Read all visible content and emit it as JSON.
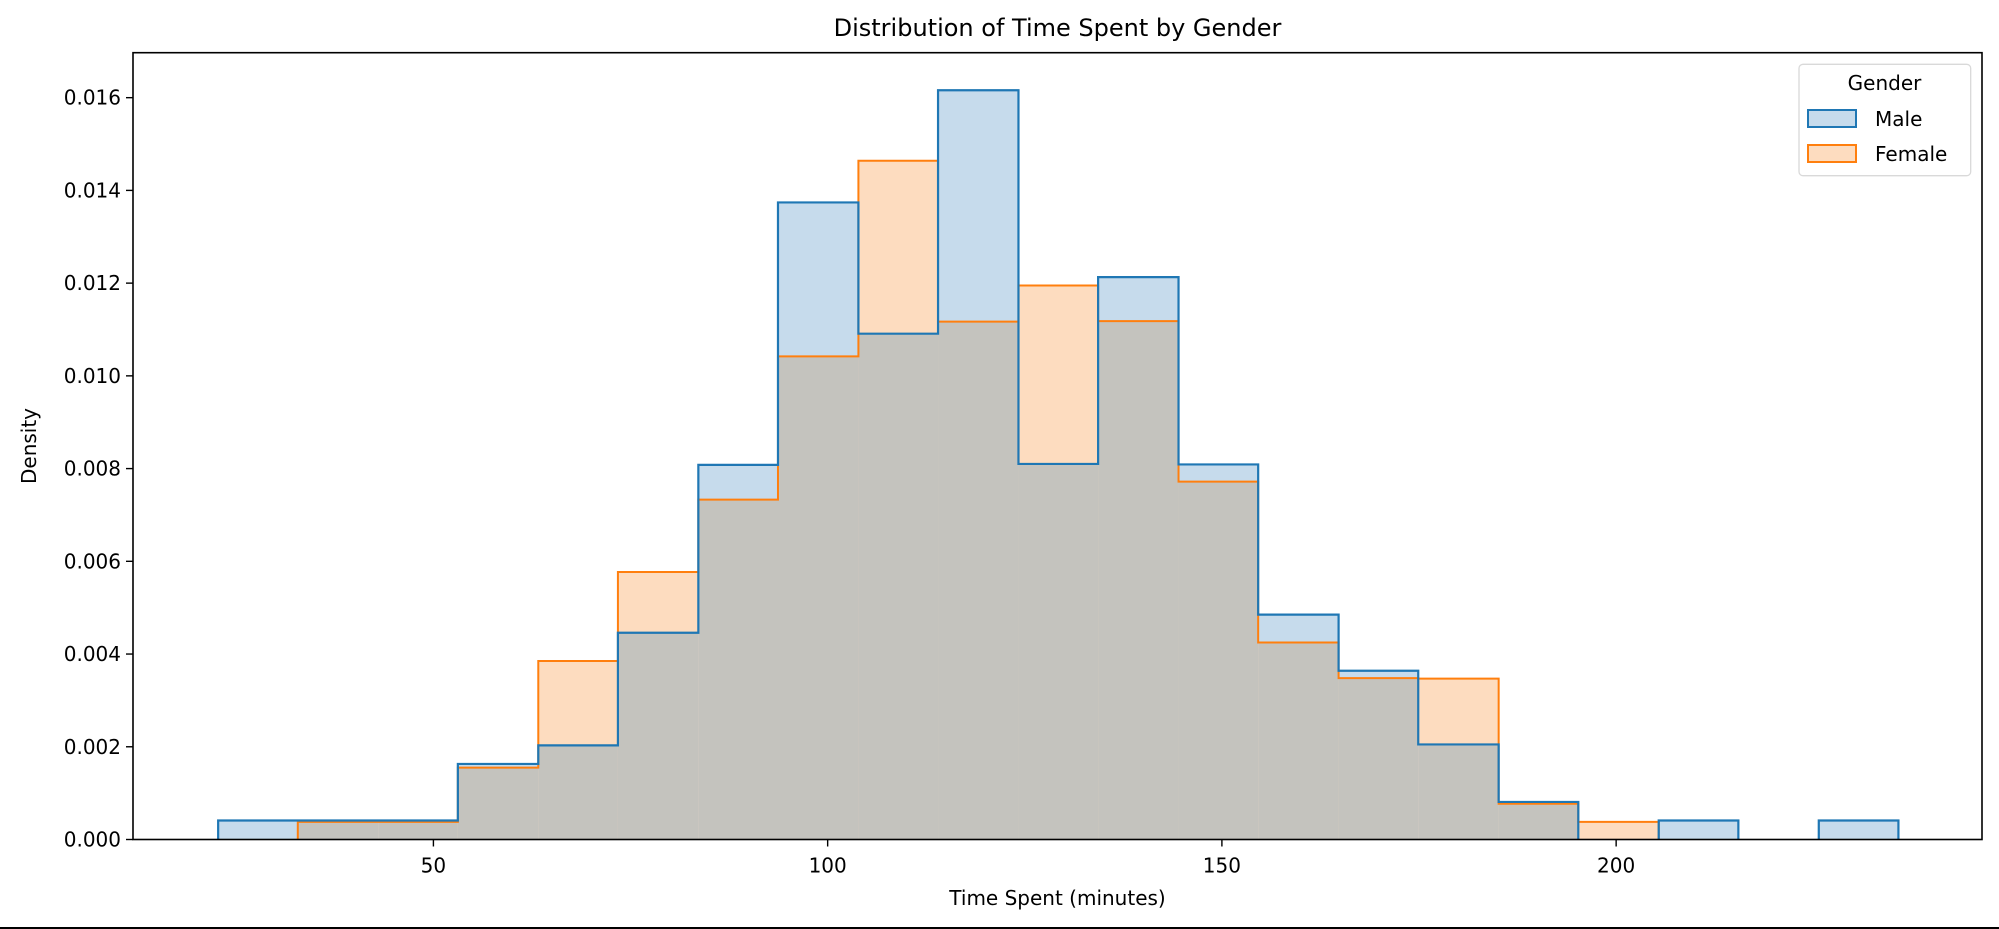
{
  "chart_data": {
    "type": "histogram",
    "title": "Distribution of Time Spent by Gender",
    "xlabel": "Time Spent (minutes)",
    "ylabel": "Density",
    "xlim": [
      11.9,
      246.4
    ],
    "ylim": [
      0.0,
      0.01697
    ],
    "xticks": [
      50,
      100,
      150,
      200
    ],
    "xtick_labels": [
      "50",
      "100",
      "150",
      "200"
    ],
    "yticks": [
      0.0,
      0.002,
      0.004,
      0.006,
      0.008,
      0.01,
      0.012,
      0.014,
      0.016
    ],
    "ytick_labels": [
      "0.000",
      "0.002",
      "0.004",
      "0.006",
      "0.008",
      "0.010",
      "0.012",
      "0.014",
      "0.016"
    ],
    "grid": false,
    "element": "step",
    "stat": "density",
    "bin_edges": [
      22.7,
      32.8,
      43.0,
      53.1,
      63.3,
      73.4,
      83.6,
      93.7,
      103.9,
      114.0,
      124.2,
      134.3,
      144.5,
      154.6,
      164.8,
      174.9,
      185.1,
      195.2,
      205.4,
      215.5,
      225.7,
      235.8
    ],
    "series": [
      {
        "name": "Male",
        "line_color": "#1f77b4",
        "fill_color": "#c6dbec",
        "values": [
          0.00041,
          0.00041,
          0.00041,
          0.00163,
          0.00203,
          0.00446,
          0.00808,
          0.01374,
          0.01091,
          0.01616,
          0.0081,
          0.01213,
          0.00809,
          0.00485,
          0.00364,
          0.00205,
          0.00081,
          0.0,
          0.00041,
          0.0,
          0.00041
        ]
      },
      {
        "name": "Female",
        "line_color": "#ff7f0e",
        "fill_color": "#fddcbf",
        "values": [
          0.0,
          0.00038,
          0.00038,
          0.00155,
          0.00385,
          0.00577,
          0.00733,
          0.01042,
          0.01464,
          0.01117,
          0.01195,
          0.01118,
          0.00772,
          0.00425,
          0.00348,
          0.00347,
          0.00077,
          0.00038,
          0.0,
          0.0,
          0.0
        ]
      }
    ],
    "overlap_color": "#c4c3be",
    "legend": {
      "title": "Gender",
      "position": "upper right",
      "entries": [
        "Male",
        "Female"
      ]
    }
  }
}
